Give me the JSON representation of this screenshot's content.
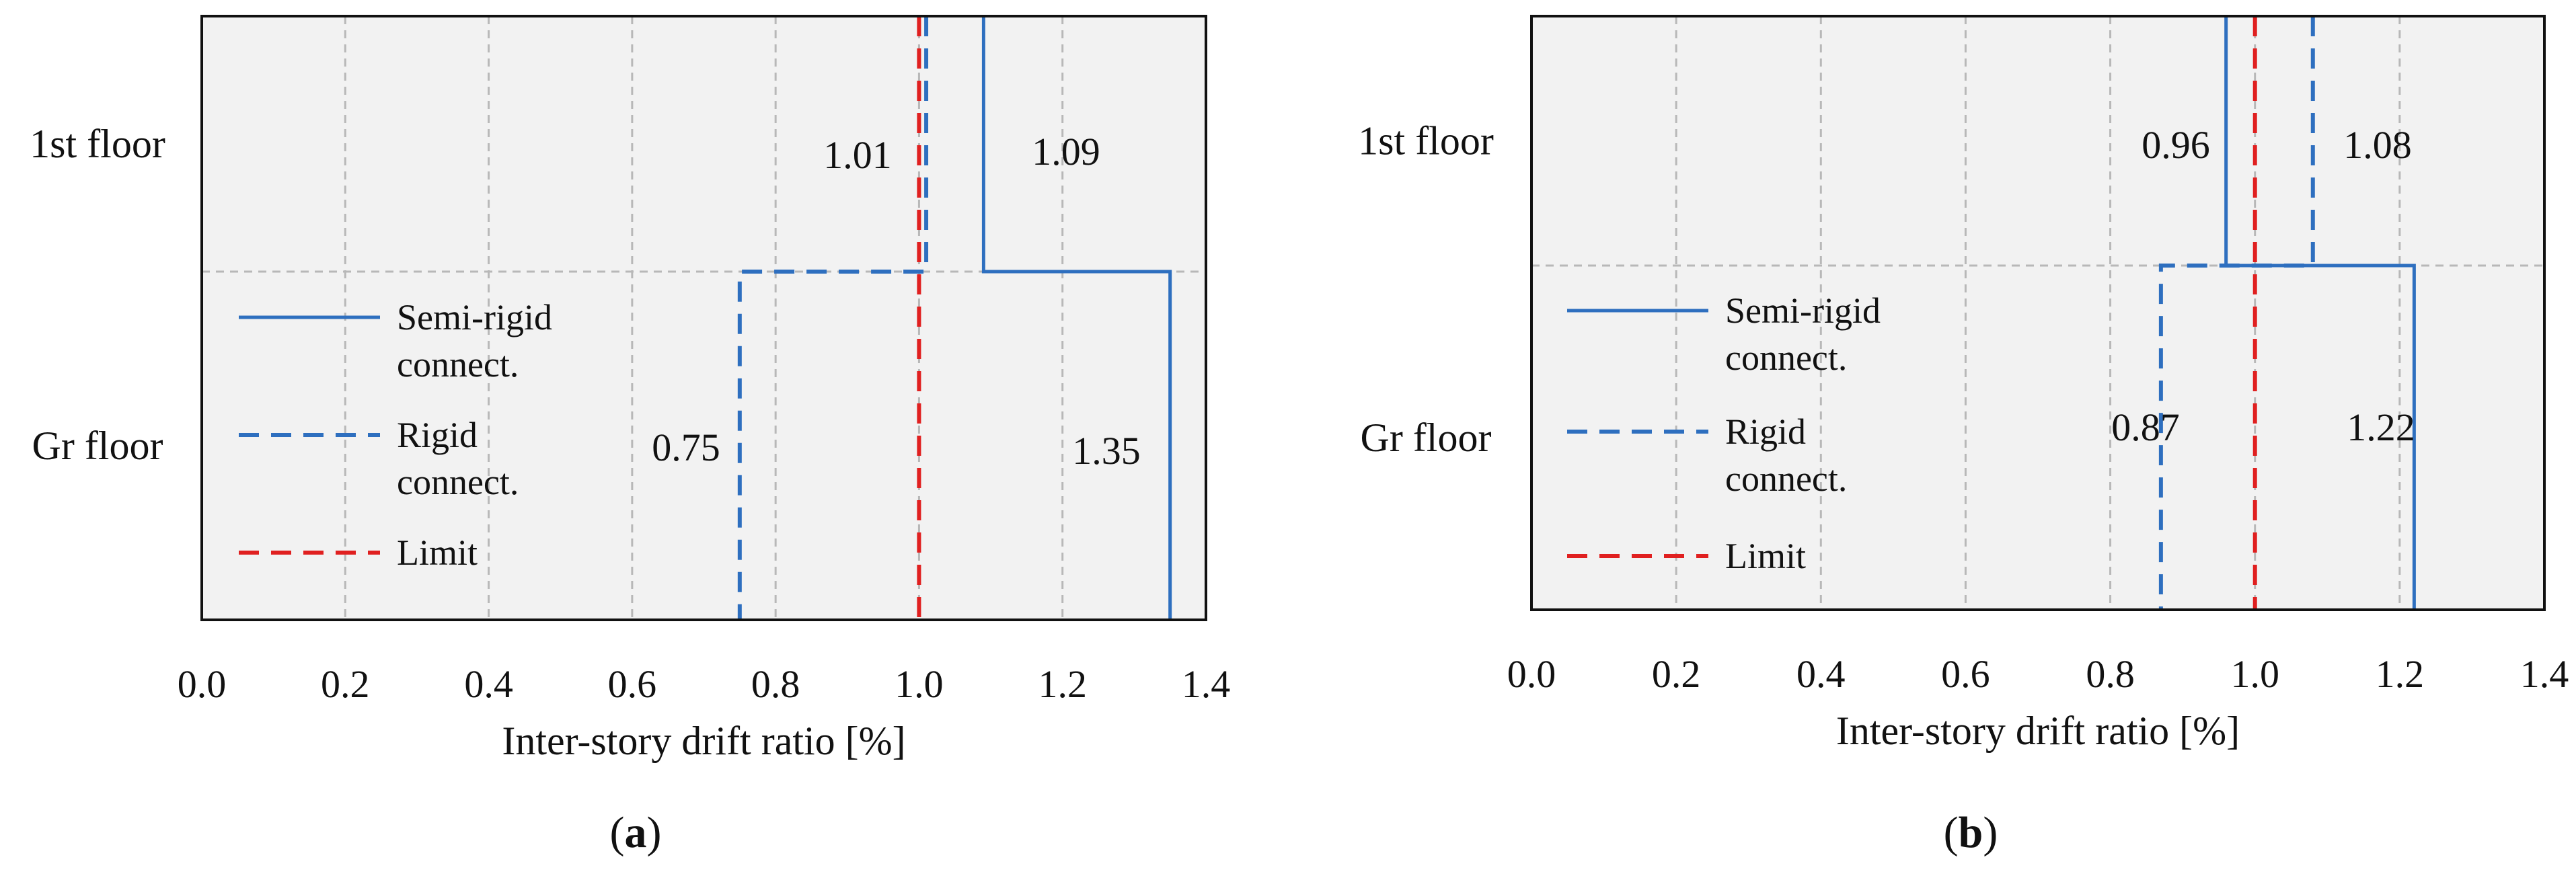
{
  "chart_data": [
    {
      "type": "step",
      "panel_label": "a",
      "xlabel": "Inter-story drift ratio [%]",
      "xlim": [
        0.0,
        1.4
      ],
      "x_ticks": [
        "0.0",
        "0.2",
        "0.4",
        "0.6",
        "0.8",
        "1.0",
        "1.2",
        "1.4"
      ],
      "categories": [
        "1st floor",
        "Gr floor"
      ],
      "grid": true,
      "legend_position": "bottom-left",
      "series": [
        {
          "name": "Semi-rigid connect.",
          "style": "solid",
          "color": "#2e6fbf",
          "values": [
            1.09,
            1.35
          ],
          "labels": [
            "1.09",
            "1.35"
          ]
        },
        {
          "name": "Rigid connect.",
          "style": "dashed",
          "color": "#2e6fbf",
          "values": [
            1.01,
            0.75
          ],
          "labels": [
            "1.01",
            "0.75"
          ]
        },
        {
          "name": "Limit",
          "style": "dashed",
          "color": "#e02020",
          "values": [
            1.0,
            1.0
          ],
          "labels": []
        }
      ]
    },
    {
      "type": "step",
      "panel_label": "b",
      "xlabel": "Inter-story drift ratio [%]",
      "xlim": [
        0.0,
        1.4
      ],
      "x_ticks": [
        "0.0",
        "0.2",
        "0.4",
        "0.6",
        "0.8",
        "1.0",
        "1.2",
        "1.4"
      ],
      "categories": [
        "1st floor",
        "Gr floor"
      ],
      "grid": true,
      "legend_position": "bottom-left",
      "series": [
        {
          "name": "Semi-rigid connect.",
          "style": "solid",
          "color": "#2e6fbf",
          "values": [
            0.96,
            1.22
          ],
          "labels": [
            "0.96",
            "1.22"
          ]
        },
        {
          "name": "Rigid connect.",
          "style": "dashed",
          "color": "#2e6fbf",
          "values": [
            1.08,
            0.87
          ],
          "labels": [
            "1.08",
            "0.87"
          ]
        },
        {
          "name": "Limit",
          "style": "dashed",
          "color": "#e02020",
          "values": [
            1.0,
            1.0
          ],
          "labels": []
        }
      ]
    }
  ]
}
